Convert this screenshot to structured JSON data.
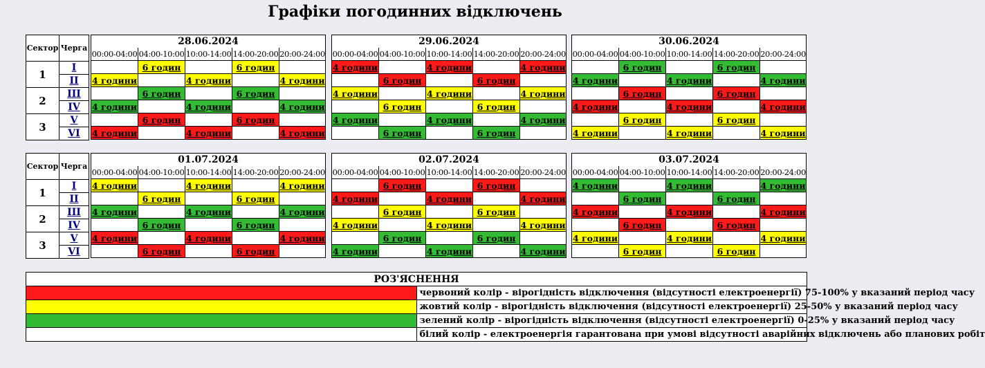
{
  "title": "Графіки погодинних відключень",
  "header": {
    "sector": "Сектор",
    "queue": "Черга"
  },
  "sectors": [
    "1",
    "2",
    "3"
  ],
  "queues": [
    "I",
    "II",
    "III",
    "IV",
    "V",
    "VI"
  ],
  "slots": [
    "00:00-04:00",
    "04:00-10:00",
    "10:00-14:00",
    "14:00-20:00",
    "20:00-24:00"
  ],
  "labels": [
    "4 години",
    "6 годин",
    "4 години",
    "6 годин",
    "4 години"
  ],
  "colors": {
    "r": "#ff1a1a",
    "y": "#ffff00",
    "g": "#33bb33",
    "w": "#ffffff"
  },
  "days": [
    {
      "date": "28.06.2024",
      "rows": [
        "wywyw",
        "ywywy",
        "wgwgw",
        "gwgwg",
        "wrwrw",
        "rwrwr"
      ]
    },
    {
      "date": "29.06.2024",
      "rows": [
        "rwrwr",
        "wrwrw",
        "ywywy",
        "wywyw",
        "gwgwg",
        "wgwgw"
      ]
    },
    {
      "date": "30.06.2024",
      "rows": [
        "wgwgw",
        "gwgwg",
        "wrwrw",
        "rwrwr",
        "wywyw",
        "ywywy"
      ]
    },
    {
      "date": "01.07.2024",
      "rows": [
        "ywywy",
        "wywyw",
        "gwgwg",
        "wgwgw",
        "rwrwr",
        "wrwrw"
      ]
    },
    {
      "date": "02.07.2024",
      "rows": [
        "wrwrw",
        "rwrwr",
        "wywyw",
        "ywywy",
        "wgwgw",
        "gwgwg"
      ]
    },
    {
      "date": "03.07.2024",
      "rows": [
        "gwgwg",
        "wgwgw",
        "rwrwr",
        "wrwrw",
        "ywywy",
        "wywyw"
      ]
    }
  ],
  "legend": {
    "title": "РОЗ'ЯСНЕННЯ",
    "items": [
      {
        "color": "r",
        "text": "червоний колір - вірогідність відключення (відсутності електроенергії) 75-100% у вказаний період часу"
      },
      {
        "color": "y",
        "text": "жовтий колір - вірогідність відключення (відсутності електроенергії) 25-50% у вказаний період часу"
      },
      {
        "color": "g",
        "text": "зелений колір - вірогідність відключення (відсутності електроенергії) 0-25% у вказаний період часу"
      },
      {
        "color": "w",
        "text": "білий колір - електроенергія гарантована при умові відсутності аварійних відключень або планових робіт"
      }
    ]
  }
}
